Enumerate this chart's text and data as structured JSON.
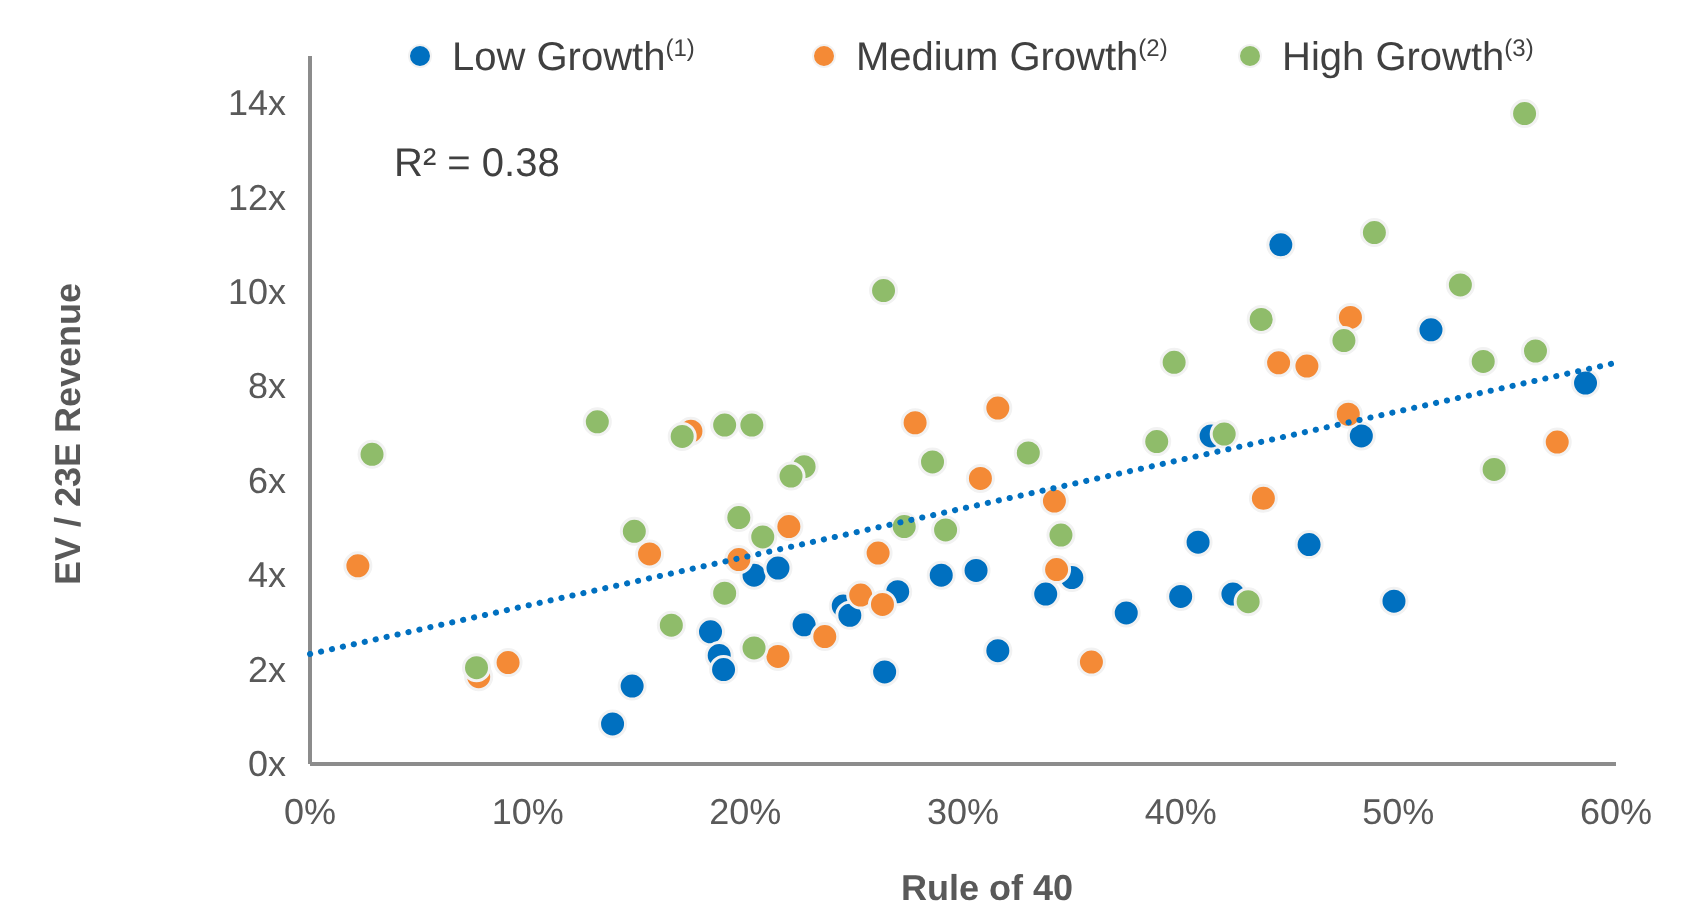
{
  "chart_data": {
    "type": "scatter",
    "xlabel": "Rule of 40",
    "ylabel": "EV / 23E Revenue",
    "annotations": [
      "R² = 0.38"
    ],
    "xlim": [
      0,
      60
    ],
    "ylim": [
      0,
      15
    ],
    "xticks": [
      {
        "value": 0,
        "label": "0%"
      },
      {
        "value": 10,
        "label": "10%"
      },
      {
        "value": 20,
        "label": "20%"
      },
      {
        "value": 30,
        "label": "30%"
      },
      {
        "value": 40,
        "label": "40%"
      },
      {
        "value": 50,
        "label": "50%"
      },
      {
        "value": 60,
        "label": "60%"
      }
    ],
    "yticks": [
      {
        "value": 0,
        "label": "0x"
      },
      {
        "value": 2,
        "label": "2x"
      },
      {
        "value": 4,
        "label": "4x"
      },
      {
        "value": 6,
        "label": "6x"
      },
      {
        "value": 8,
        "label": "8x"
      },
      {
        "value": 10,
        "label": "10x"
      },
      {
        "value": 12,
        "label": "12x"
      },
      {
        "value": 14,
        "label": "14x"
      }
    ],
    "grid": false,
    "legend": "top",
    "marker": "circle",
    "series": [
      {
        "name": "Low Growth$^{(1)}$",
        "color": "#0070c0",
        "x": [
          13.9,
          14.8,
          18.4,
          18.8,
          19.0,
          20.4,
          21.5,
          22.7,
          24.5,
          24.8,
          26.4,
          27.0,
          29.0,
          30.6,
          31.6,
          33.8,
          35.0,
          37.5,
          40.0,
          40.8,
          41.4,
          42.4,
          44.6,
          45.9,
          48.3,
          49.8,
          51.5,
          58.6
        ],
        "values": [
          0.85,
          1.65,
          2.8,
          2.3,
          2.0,
          4.0,
          4.15,
          2.95,
          3.35,
          3.15,
          1.95,
          3.65,
          4.0,
          4.1,
          2.4,
          3.6,
          3.95,
          3.2,
          3.55,
          4.7,
          6.95,
          3.6,
          11.0,
          4.65,
          6.95,
          3.45,
          9.2,
          8.07
        ]
      },
      {
        "name": "Medium Growth$^{(2)}$",
        "color": "#f48a36",
        "x": [
          2.2,
          7.75,
          9.1,
          15.6,
          17.5,
          19.7,
          22.0,
          21.5,
          23.65,
          25.3,
          26.3,
          26.1,
          27.8,
          31.6,
          30.8,
          34.2,
          34.3,
          35.9,
          43.8,
          44.5,
          45.8,
          47.8,
          47.7,
          57.3
        ],
        "values": [
          4.2,
          1.85,
          2.15,
          4.45,
          7.05,
          4.33,
          5.03,
          2.28,
          2.7,
          3.58,
          3.38,
          4.47,
          7.23,
          7.54,
          6.05,
          5.57,
          4.12,
          2.16,
          5.63,
          8.5,
          8.43,
          9.46,
          7.41,
          6.82
        ]
      },
      {
        "name": "High Growth$^{(3)}$",
        "color": "#8fbc6a",
        "x": [
          2.85,
          7.65,
          13.2,
          14.9,
          16.6,
          17.1,
          19.05,
          20.3,
          19.7,
          19.05,
          20.8,
          20.4,
          22.7,
          22.1,
          26.35,
          27.3,
          28.6,
          29.2,
          33.0,
          34.5,
          38.9,
          39.7,
          42.0,
          43.1,
          43.7,
          47.5,
          48.9,
          52.85,
          53.9,
          54.4,
          55.8,
          56.3
        ],
        "values": [
          6.56,
          2.04,
          7.25,
          4.93,
          2.94,
          6.94,
          7.18,
          7.18,
          5.22,
          3.62,
          4.81,
          2.46,
          6.3,
          6.1,
          10.03,
          5.03,
          6.4,
          4.96,
          6.59,
          4.85,
          6.83,
          8.51,
          6.99,
          3.44,
          9.42,
          8.97,
          11.26,
          10.15,
          8.53,
          6.24,
          13.78,
          8.75
        ]
      },
      {
        "type": "line",
        "color": "#0070c0",
        "line_style": "dotted",
        "marker": "none",
        "x": [
          0,
          60
        ],
        "values": [
          2.33,
          8.5
        ]
      }
    ]
  }
}
